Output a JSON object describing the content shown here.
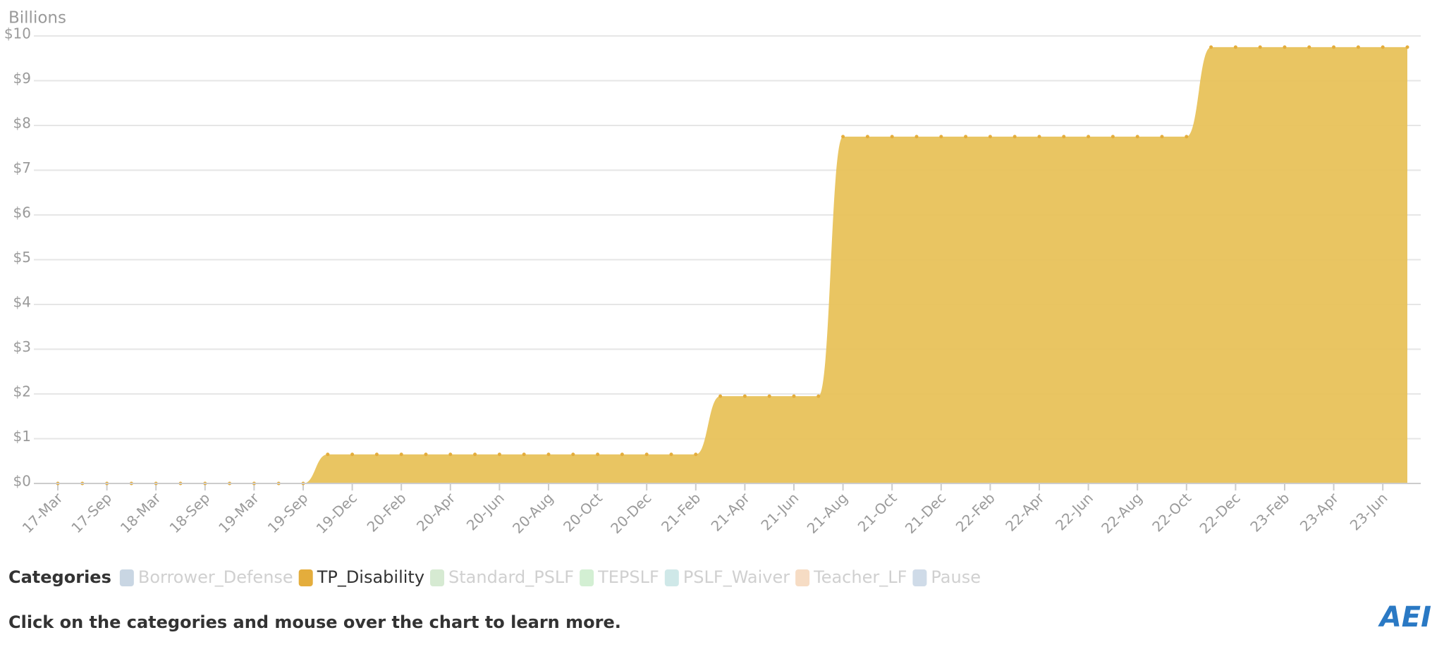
{
  "chart_data": {
    "type": "area",
    "y_label": "Billions",
    "categories": [
      "17-Mar",
      null,
      "17-Sep",
      null,
      "18-Mar",
      null,
      "18-Sep",
      null,
      "19-Mar",
      null,
      "19-Sep",
      null,
      "19-Dec",
      null,
      "20-Feb",
      null,
      "20-Apr",
      null,
      "20-Jun",
      null,
      "20-Aug",
      null,
      "20-Oct",
      null,
      "20-Dec",
      null,
      "21-Feb",
      null,
      "21-Apr",
      null,
      "21-Jun",
      null,
      "21-Aug",
      null,
      "21-Oct",
      null,
      "21-Dec",
      null,
      "22-Feb",
      null,
      "22-Apr",
      null,
      "22-Jun",
      null,
      "22-Aug",
      null,
      "22-Oct",
      null,
      "22-Dec",
      null,
      "23-Feb",
      null,
      "23-Apr",
      null,
      "23-Jun",
      null
    ],
    "series": [
      {
        "name": "TP_Disability",
        "color": "#e8c25a",
        "values": [
          0,
          0,
          0,
          0,
          0,
          0,
          0,
          0,
          0,
          0,
          0,
          0.65,
          0.65,
          0.65,
          0.65,
          0.65,
          0.65,
          0.65,
          0.65,
          0.65,
          0.65,
          0.65,
          0.65,
          0.65,
          0.65,
          0.65,
          0.65,
          1.95,
          1.95,
          1.95,
          1.95,
          1.95,
          7.75,
          7.75,
          7.75,
          7.75,
          7.75,
          7.75,
          7.75,
          7.75,
          7.75,
          7.75,
          7.75,
          7.75,
          7.75,
          7.75,
          7.75,
          9.75,
          9.75,
          9.75,
          9.75,
          9.75,
          9.75,
          9.75,
          9.75,
          9.75
        ]
      }
    ],
    "ylim": [
      0,
      10
    ],
    "yticks": [
      {
        "value": 0,
        "label": "$0"
      },
      {
        "value": 1,
        "label": "$1"
      },
      {
        "value": 2,
        "label": "$2"
      },
      {
        "value": 3,
        "label": "$3"
      },
      {
        "value": 4,
        "label": "$4"
      },
      {
        "value": 5,
        "label": "$5"
      },
      {
        "value": 6,
        "label": "$6"
      },
      {
        "value": 7,
        "label": "$7"
      },
      {
        "value": 8,
        "label": "$8"
      },
      {
        "value": 9,
        "label": "$9"
      },
      {
        "value": 10,
        "label": "$10"
      }
    ],
    "grid": true,
    "legend_title": "Categories",
    "legend_items": [
      {
        "name": "Borrower_Defense",
        "color": "#c9d6e3",
        "active": false
      },
      {
        "name": "TP_Disability",
        "color": "#e4ad3c",
        "active": true
      },
      {
        "name": "Standard_PSLF",
        "color": "#d6ead2",
        "active": false
      },
      {
        "name": "TEPSLF",
        "color": "#d3efd3",
        "active": false
      },
      {
        "name": "PSLF_Waiver",
        "color": "#cfe8e8",
        "active": false
      },
      {
        "name": "Teacher_LF",
        "color": "#f6dcc4",
        "active": false
      },
      {
        "name": "Pause",
        "color": "#cfdbe8",
        "active": false
      }
    ]
  },
  "footer": {
    "note": "Click on the categories and mouse over the chart to learn more.",
    "logo": "AEI"
  }
}
